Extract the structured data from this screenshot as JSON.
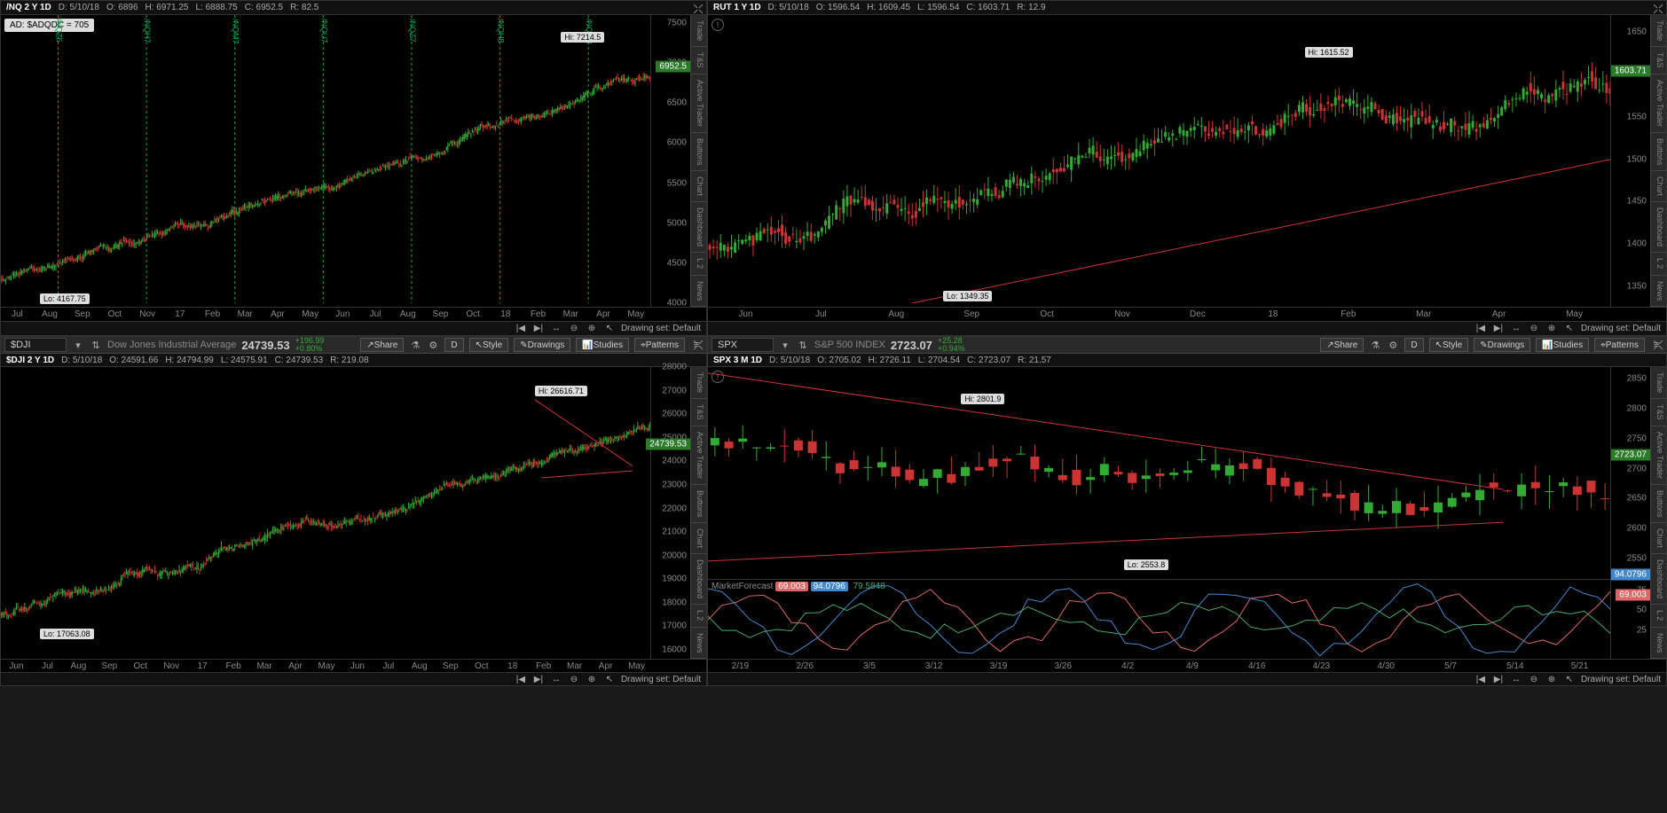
{
  "colors": {
    "up": "#33aa33",
    "down": "#cc3333",
    "trendline": "#cc3333",
    "bg": "#000000",
    "price_tag": "#2a7a2a",
    "blue_tag": "#3a6acc"
  },
  "side_tabs": [
    "Trade",
    "T&S",
    "Active Trader",
    "Buttons",
    "Chart",
    "Dashboard",
    "L 2",
    "News"
  ],
  "drawing_set": "Drawing set: Default",
  "toolbar": {
    "share": "Share",
    "style": "Style",
    "drawings": "Drawings",
    "studies": "Studies",
    "patterns": "Patterns",
    "timeframe_d": "D"
  },
  "panels": {
    "nq": {
      "title": "/NQ 2 Y 1D",
      "date": "D: 5/10/18",
      "o": "O: 6896",
      "h": "H: 6971.25",
      "l": "L: 6888.75",
      "c": "C: 6952.5",
      "r": "R: 82.5",
      "ad_box": "AD: $ADQDC = 705",
      "hi_label": "Hi: 7214.5",
      "lo_label": "Lo: 4167.75",
      "current_price": "6952.5",
      "y_ticks": [
        "7500",
        "7000",
        "6500",
        "6000",
        "5500",
        "5000",
        "4500",
        "4000"
      ],
      "y_range": [
        4000,
        7600
      ],
      "price_tag_y": 6952.5,
      "x_ticks": [
        "Jul",
        "Aug",
        "Sep",
        "Oct",
        "Nov",
        "17",
        "Feb",
        "Mar",
        "Apr",
        "May",
        "Jun",
        "Jul",
        "Aug",
        "Sep",
        "Oct",
        "18",
        "Feb",
        "Mar",
        "Apr",
        "May"
      ],
      "contracts": [
        "/NQZ5",
        "/NQH7",
        "/NQM7",
        "/NQU7",
        "/NQZ7",
        "/NQH8",
        "/NQM8"
      ]
    },
    "rut": {
      "title": "RUT 1 Y 1D",
      "date": "D: 5/10/18",
      "o": "O: 1596.54",
      "h": "H: 1609.45",
      "l": "L: 1596.54",
      "c": "C: 1603.71",
      "r": "R: 12.9",
      "hi_label": "Hi: 1615.52",
      "lo_label": "Lo: 1349.35",
      "current_price": "1603.71",
      "y_ticks": [
        "1650",
        "1600",
        "1550",
        "1500",
        "1450",
        "1400",
        "1350"
      ],
      "y_range": [
        1330,
        1670
      ],
      "price_tag_y": 1603.71,
      "x_ticks": [
        "Jun",
        "Jul",
        "Aug",
        "Sep",
        "Oct",
        "Nov",
        "Dec",
        "18",
        "Feb",
        "Mar",
        "Apr",
        "May"
      ]
    },
    "dji": {
      "symbol": "$DJI",
      "desc": "Dow Jones Industrial Average",
      "price": "24739.53",
      "chg": "+196.99",
      "chg_pct": "+0.80%",
      "title": "$DJI 2 Y 1D",
      "date": "D: 5/10/18",
      "o": "O: 24591.66",
      "h": "H: 24794.99",
      "l": "L: 24575.91",
      "c": "C: 24739.53",
      "r": "R: 219.08",
      "hi_label": "Hi: 26616.71",
      "lo_label": "Lo: 17063.08",
      "current_price": "24739.53",
      "y_ticks": [
        "28000",
        "27000",
        "26000",
        "25000",
        "24000",
        "23000",
        "22000",
        "21000",
        "20000",
        "19000",
        "18000",
        "17000",
        "16000"
      ],
      "y_range": [
        16000,
        28000
      ],
      "price_tag_y": 24739.53,
      "x_ticks": [
        "Jun",
        "Jul",
        "Aug",
        "Sep",
        "Oct",
        "Nov",
        "17",
        "Feb",
        "Mar",
        "Apr",
        "May",
        "Jun",
        "Jul",
        "Aug",
        "Sep",
        "Oct",
        "18",
        "Feb",
        "Mar",
        "Apr",
        "May"
      ]
    },
    "spx": {
      "symbol": "SPX",
      "desc": "S&P 500 INDEX",
      "price": "2723.07",
      "chg": "+25.28",
      "chg_pct": "+0.94%",
      "title": "SPX 3 M 1D",
      "date": "D: 5/10/18",
      "o": "O: 2705.02",
      "h": "H: 2726.11",
      "l": "L: 2704.54",
      "c": "C: 2723.07",
      "r": "R: 21.57",
      "hi_label": "Hi: 2801.9",
      "lo_label": "Lo: 2553.8",
      "current_price": "2723.07",
      "y_ticks": [
        "2850",
        "2800",
        "2750",
        "2700",
        "2650",
        "2600",
        "2550"
      ],
      "y_range": [
        2530,
        2870
      ],
      "price_tag_y": 2723.07,
      "x_ticks": [
        "2/19",
        "2/26",
        "3/5",
        "3/12",
        "3/19",
        "3/26",
        "4/2",
        "4/9",
        "4/16",
        "4/23",
        "4/30",
        "5/7",
        "5/14",
        "5/21"
      ],
      "indicator": {
        "name": "MarketForecast",
        "v1": "69.003",
        "c1": "#d66",
        "v2": "94.0796",
        "c2": "#48c",
        "v3": "79.5848",
        "c3": "#4a6",
        "y_ticks": [
          "75",
          "50",
          "25"
        ],
        "tag1": "94.0796",
        "tag2": "69.003"
      }
    }
  }
}
